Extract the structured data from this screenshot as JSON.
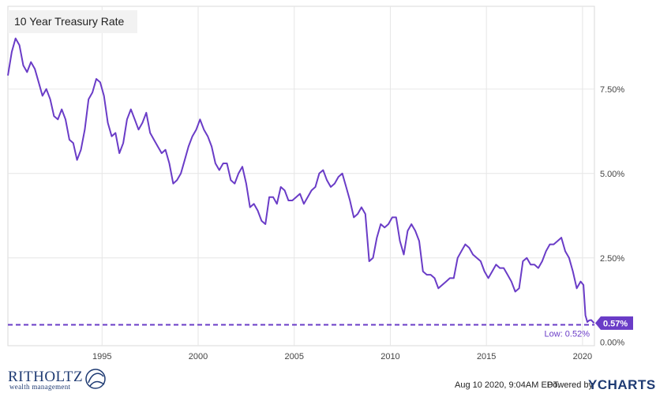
{
  "chart_data": {
    "type": "line",
    "title": "10 Year Treasury Rate",
    "xlabel": "",
    "ylabel": "",
    "x_ticks": [
      "1995",
      "2000",
      "2005",
      "2010",
      "2015",
      "2020"
    ],
    "y_ticks": [
      "7.50%",
      "5.00%",
      "2.50%",
      "0.00%"
    ],
    "xlim": [
      1990.1,
      2020.62
    ],
    "ylim": [
      -0.1,
      9.95
    ],
    "grid": true,
    "series": [
      {
        "color": "#6a3cc7",
        "x": [
          1990.1,
          1990.3,
          1990.5,
          1990.7,
          1990.9,
          1991.1,
          1991.3,
          1991.5,
          1991.7,
          1991.9,
          1992.1,
          1992.3,
          1992.5,
          1992.7,
          1992.9,
          1993.1,
          1993.3,
          1993.5,
          1993.7,
          1993.9,
          1994.1,
          1994.3,
          1994.5,
          1994.7,
          1994.9,
          1995.1,
          1995.3,
          1995.5,
          1995.7,
          1995.9,
          1996.1,
          1996.3,
          1996.5,
          1996.7,
          1996.9,
          1997.1,
          1997.3,
          1997.5,
          1997.7,
          1997.9,
          1998.1,
          1998.3,
          1998.5,
          1998.7,
          1998.9,
          1999.1,
          1999.3,
          1999.5,
          1999.7,
          1999.9,
          2000.1,
          2000.3,
          2000.5,
          2000.7,
          2000.9,
          2001.1,
          2001.3,
          2001.5,
          2001.7,
          2001.9,
          2002.1,
          2002.3,
          2002.5,
          2002.7,
          2002.9,
          2003.1,
          2003.3,
          2003.5,
          2003.7,
          2003.9,
          2004.1,
          2004.3,
          2004.5,
          2004.7,
          2004.9,
          2005.1,
          2005.3,
          2005.5,
          2005.7,
          2005.9,
          2006.1,
          2006.3,
          2006.5,
          2006.7,
          2006.9,
          2007.1,
          2007.3,
          2007.5,
          2007.7,
          2007.9,
          2008.1,
          2008.3,
          2008.5,
          2008.7,
          2008.9,
          2009.1,
          2009.3,
          2009.5,
          2009.7,
          2009.9,
          2010.1,
          2010.3,
          2010.5,
          2010.7,
          2010.9,
          2011.1,
          2011.3,
          2011.5,
          2011.7,
          2011.9,
          2012.1,
          2012.3,
          2012.5,
          2012.7,
          2012.9,
          2013.1,
          2013.3,
          2013.5,
          2013.7,
          2013.9,
          2014.1,
          2014.3,
          2014.5,
          2014.7,
          2014.9,
          2015.1,
          2015.3,
          2015.5,
          2015.7,
          2015.9,
          2016.1,
          2016.3,
          2016.5,
          2016.7,
          2016.9,
          2017.1,
          2017.3,
          2017.5,
          2017.7,
          2017.9,
          2018.1,
          2018.3,
          2018.5,
          2018.7,
          2018.9,
          2019.1,
          2019.3,
          2019.5,
          2019.7,
          2019.9,
          2020.05,
          2020.15,
          2020.25,
          2020.35,
          2020.45,
          2020.55,
          2020.6
        ],
        "y": [
          7.9,
          8.6,
          9.0,
          8.8,
          8.2,
          8.0,
          8.3,
          8.1,
          7.7,
          7.3,
          7.5,
          7.2,
          6.7,
          6.6,
          6.9,
          6.6,
          6.0,
          5.9,
          5.4,
          5.7,
          6.3,
          7.2,
          7.4,
          7.8,
          7.7,
          7.3,
          6.5,
          6.1,
          6.2,
          5.6,
          5.9,
          6.6,
          6.9,
          6.6,
          6.3,
          6.5,
          6.8,
          6.2,
          6.0,
          5.8,
          5.6,
          5.7,
          5.3,
          4.7,
          4.8,
          5.0,
          5.4,
          5.8,
          6.1,
          6.3,
          6.6,
          6.3,
          6.1,
          5.8,
          5.3,
          5.1,
          5.3,
          5.3,
          4.8,
          4.7,
          5.0,
          5.2,
          4.7,
          4.0,
          4.1,
          3.9,
          3.6,
          3.5,
          4.3,
          4.3,
          4.1,
          4.6,
          4.5,
          4.2,
          4.2,
          4.3,
          4.4,
          4.1,
          4.3,
          4.5,
          4.6,
          5.0,
          5.1,
          4.8,
          4.6,
          4.7,
          4.9,
          5.0,
          4.6,
          4.2,
          3.7,
          3.8,
          4.0,
          3.8,
          2.4,
          2.5,
          3.1,
          3.5,
          3.4,
          3.5,
          3.7,
          3.7,
          3.0,
          2.6,
          3.3,
          3.5,
          3.3,
          3.0,
          2.1,
          2.0,
          2.0,
          1.9,
          1.6,
          1.7,
          1.8,
          1.9,
          1.9,
          2.5,
          2.7,
          2.9,
          2.8,
          2.6,
          2.5,
          2.4,
          2.1,
          1.9,
          2.1,
          2.3,
          2.2,
          2.2,
          2.0,
          1.8,
          1.5,
          1.6,
          2.4,
          2.5,
          2.3,
          2.3,
          2.2,
          2.4,
          2.7,
          2.9,
          2.9,
          3.0,
          3.1,
          2.7,
          2.5,
          2.1,
          1.6,
          1.8,
          1.7,
          0.8,
          0.6,
          0.65,
          0.66,
          0.6,
          0.57
        ]
      }
    ],
    "reference_line": {
      "value": 0.52,
      "label": "Low: 0.52%",
      "color": "#6a3cc7"
    },
    "end_marker": {
      "label": "0.57%",
      "color": "#6a3cc7"
    }
  },
  "footer": {
    "brand_name": "RITHOLTZ",
    "brand_sub": "wealth management",
    "timestamp": "Aug 10 2020, 9:04AM EDT.",
    "powered_by": "Powered by",
    "provider": "YCHARTS"
  }
}
